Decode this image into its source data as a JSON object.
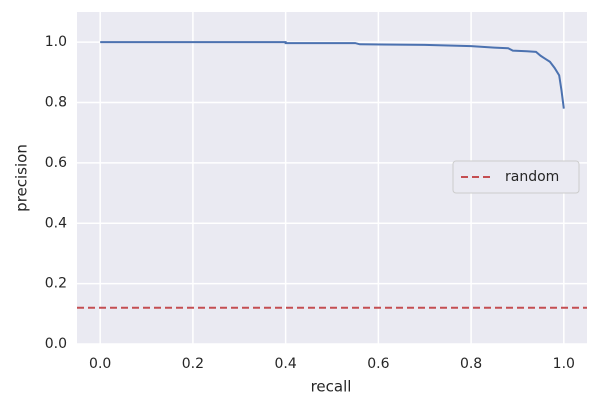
{
  "chart_data": {
    "type": "line",
    "xlabel": "recall",
    "ylabel": "precision",
    "xlim": [
      -0.05,
      1.05
    ],
    "ylim": [
      0,
      1.1
    ],
    "xticks": [
      {
        "value": 0,
        "label": "0.0"
      },
      0.2,
      0.4,
      0.6,
      0.8,
      {
        "value": 1,
        "label": "1.0"
      }
    ],
    "yticks": [
      {
        "value": 0,
        "label": "0.0"
      },
      0.2,
      0.4,
      0.6,
      0.8,
      {
        "value": 1,
        "label": "1.0"
      }
    ],
    "grid": true,
    "legend": "center right",
    "curve": {
      "color": "#4c72b0",
      "x": [
        0,
        0.4,
        0.4,
        0.55,
        0.56,
        0.7,
        0.8,
        0.85,
        0.88,
        0.89,
        0.92,
        0.94,
        0.95,
        0.96,
        0.97,
        0.98,
        0.99,
        0.995,
        1.0
      ],
      "values": [
        1.0,
        1.0,
        0.997,
        0.997,
        0.993,
        0.991,
        0.987,
        0.982,
        0.98,
        0.972,
        0.97,
        0.968,
        0.955,
        0.945,
        0.935,
        0.915,
        0.89,
        0.84,
        0.78
      ]
    },
    "baseline": {
      "name": "random",
      "color": "#c44e52",
      "value": 0.12
    }
  }
}
